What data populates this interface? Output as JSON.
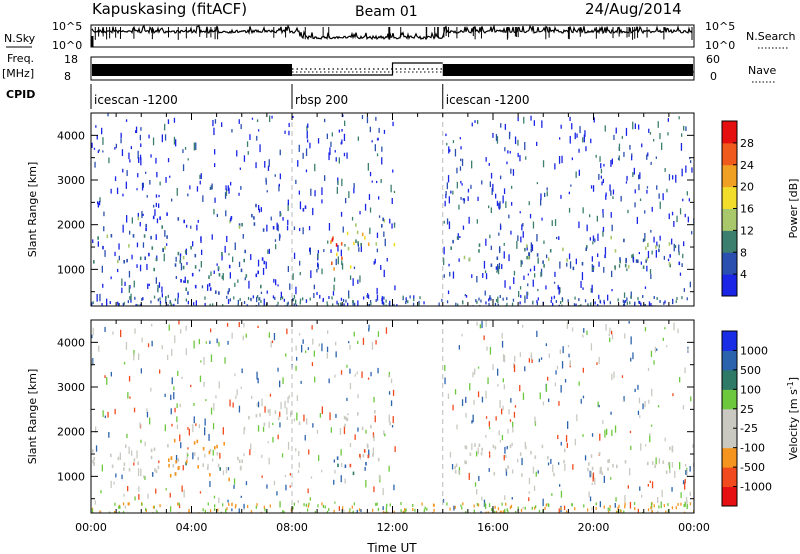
{
  "header": {
    "title": "Kapuskasing (fitACF)",
    "beam": "Beam 01",
    "date": "24/Aug/2014"
  },
  "status": {
    "nsky_label": "N.Sky",
    "nsky_ticks": [
      "10^5",
      "10^0"
    ],
    "nsearch_label": "N.Search",
    "nsearch_ticks": [
      "10^5",
      "10^0"
    ],
    "freq_label": "Freq.",
    "freq_unit": "[MHz]",
    "freq_ticks": [
      "18",
      "8"
    ],
    "nave_label": "Nave",
    "nave_ticks": [
      "60",
      "0"
    ],
    "cpid_label": "CPID",
    "cpid_segments": [
      {
        "name": "icescan -1200",
        "start_h": 0,
        "end_h": 8
      },
      {
        "name": "rbsp 200",
        "start_h": 8,
        "end_h": 14
      },
      {
        "name": "icescan -1200",
        "start_h": 14,
        "end_h": 24
      }
    ]
  },
  "colors": {
    "power": [
      "#1a25e6",
      "#2a4fae",
      "#3d7f6e",
      "#a9c86b",
      "#f2dd2b",
      "#f0a022",
      "#f05a1d",
      "#e60f10"
    ],
    "velocity": [
      "#e61012",
      "#f04a1d",
      "#f5951f",
      "#c9c9c1",
      "#c9c9c1",
      "#6dc83e",
      "#2e7a66",
      "#2b63ad",
      "#1a2de6"
    ]
  },
  "chart_data": [
    {
      "type": "heatmap",
      "name": "power-panel",
      "xlabel": "",
      "ylabel": "Slant Range [km]",
      "xlim": [
        0,
        24
      ],
      "ylim": [
        180,
        4500
      ],
      "yticks": [
        1000,
        2000,
        3000,
        4000
      ],
      "colorbar": {
        "label": "Power [dB]",
        "ticks": [
          "4",
          "8",
          "12",
          "16",
          "20",
          "24",
          "28"
        ],
        "range": [
          0,
          30
        ]
      },
      "regions": [
        {
          "t0": 0.0,
          "t1": 4.3,
          "r0": 1000,
          "r1": 1800,
          "value": 9
        },
        {
          "t0": 1.5,
          "t1": 7.5,
          "r0": 1900,
          "r1": 2300,
          "value": 6
        },
        {
          "t0": 3.5,
          "t1": 7.0,
          "r0": 500,
          "r1": 1500,
          "value": 5
        },
        {
          "t0": 6.5,
          "t1": 8.6,
          "r0": 2250,
          "r1": 2500,
          "value": 5
        },
        {
          "t0": 9.4,
          "t1": 11.2,
          "r0": 1000,
          "r1": 1900,
          "value": 20
        },
        {
          "t0": 9.5,
          "t1": 10.4,
          "r0": 1300,
          "r1": 1700,
          "value": 26
        },
        {
          "t0": 10.4,
          "t1": 12.1,
          "r0": 1500,
          "r1": 2200,
          "value": 10
        },
        {
          "t0": 14.0,
          "t1": 24.0,
          "r0": 1050,
          "r1": 1750,
          "value": 8
        }
      ]
    },
    {
      "type": "heatmap",
      "name": "velocity-panel",
      "xlabel": "Time UT",
      "ylabel": "Slant Range [km]",
      "xlim": [
        0,
        24
      ],
      "ylim": [
        180,
        4500
      ],
      "xticks": [
        "00:00",
        "04:00",
        "08:00",
        "12:00",
        "16:00",
        "20:00",
        "00:00"
      ],
      "yticks": [
        1000,
        2000,
        3000,
        4000
      ],
      "colorbar": {
        "label": "Velocity [m s^-1]",
        "ticks": [
          "-1000",
          "-500",
          "-100",
          "-25",
          "25",
          "100",
          "500",
          "1000"
        ]
      },
      "regions": [
        {
          "t0": 0.0,
          "t1": 6.0,
          "r0": 1050,
          "r1": 1750,
          "value": -10
        },
        {
          "t0": 3.0,
          "t1": 5.5,
          "r0": 900,
          "r1": 2000,
          "value": -300
        },
        {
          "t0": 6.0,
          "t1": 12.0,
          "r0": 2100,
          "r1": 2500,
          "value": 0
        },
        {
          "t0": 9.4,
          "t1": 11.2,
          "r0": 1100,
          "r1": 1700,
          "value": 600
        },
        {
          "t0": 10.6,
          "t1": 11.6,
          "r0": 1400,
          "r1": 2000,
          "value": -15
        },
        {
          "t0": 14.0,
          "t1": 24.0,
          "r0": 1050,
          "r1": 1750,
          "value": -5
        }
      ]
    }
  ]
}
